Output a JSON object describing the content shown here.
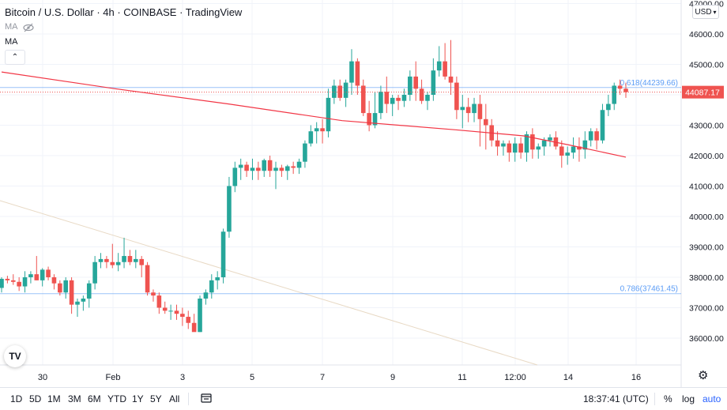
{
  "header": {
    "title": "Bitcoin / U.S. Dollar · 4h · COINBASE · TradingView",
    "ma1_label": "MA",
    "ma2_label": "MA",
    "currency": "USD"
  },
  "price_axis": {
    "labels": [
      "47000.00",
      "46000.00",
      "45000.00",
      "44000.00",
      "43000.00",
      "42000.00",
      "41000.00",
      "40000.00",
      "39000.00",
      "38000.00",
      "37000.00",
      "36000.00"
    ],
    "current_price": "44087.17",
    "current_color": "#ef5350"
  },
  "time_axis": {
    "labels": [
      "30",
      "Feb",
      "3",
      "5",
      "7",
      "9",
      "11",
      "12:00",
      "14",
      "16"
    ]
  },
  "fib": {
    "upper_label": "0.618(44239.66)",
    "lower_label": "0.786(37461.45)",
    "color": "#5b9cf6"
  },
  "colors": {
    "up": "#26a69a",
    "down": "#ef5350",
    "ma": "#f23645"
  },
  "bottom_bar": {
    "ranges": [
      "1D",
      "5D",
      "1M",
      "3M",
      "6M",
      "YTD",
      "1Y",
      "5Y",
      "All"
    ],
    "clock": "18:37:41 (UTC)",
    "percent": "%",
    "log": "log",
    "auto": "auto"
  },
  "chart_data": {
    "type": "candlestick",
    "symbol": "BTCUSD",
    "interval": "4h",
    "ylim": [
      35300,
      47000
    ],
    "x_tick_labels": [
      "30",
      "Feb",
      "3",
      "5",
      "7",
      "9",
      "11",
      "12:00",
      "14",
      "16"
    ],
    "candles": [
      [
        37650,
        38000,
        37500,
        37950
      ],
      [
        37950,
        38050,
        37800,
        37900
      ],
      [
        37900,
        38100,
        37750,
        37850
      ],
      [
        37850,
        38000,
        37550,
        37700
      ],
      [
        37700,
        38200,
        37500,
        38000
      ],
      [
        38000,
        38200,
        37800,
        38100
      ],
      [
        38100,
        38700,
        37900,
        37900
      ],
      [
        37900,
        38300,
        37700,
        38250
      ],
      [
        38250,
        38350,
        37900,
        38000
      ],
      [
        38000,
        38100,
        37600,
        37800
      ],
      [
        37800,
        37900,
        37400,
        37500
      ],
      [
        37500,
        38000,
        37300,
        37900
      ],
      [
        37900,
        38000,
        36800,
        37100
      ],
      [
        37100,
        37300,
        36700,
        37200
      ],
      [
        37200,
        37400,
        36900,
        37300
      ],
      [
        37300,
        37900,
        37000,
        37800
      ],
      [
        37800,
        38700,
        37600,
        38500
      ],
      [
        38500,
        38800,
        38300,
        38600
      ],
      [
        38600,
        38700,
        38300,
        38500
      ],
      [
        38500,
        39100,
        38300,
        38400
      ],
      [
        38400,
        38800,
        38200,
        38500
      ],
      [
        38500,
        39300,
        38300,
        38700
      ],
      [
        38700,
        38900,
        38400,
        38500
      ],
      [
        38500,
        38900,
        38300,
        38600
      ],
      [
        38600,
        38700,
        38000,
        38400
      ],
      [
        38400,
        38500,
        37400,
        37500
      ],
      [
        37500,
        37600,
        37200,
        37400
      ],
      [
        37400,
        37500,
        36800,
        37000
      ],
      [
        37000,
        37200,
        36800,
        36900
      ],
      [
        36900,
        37100,
        36600,
        36900
      ],
      [
        36900,
        37100,
        36600,
        36800
      ],
      [
        36800,
        37000,
        36400,
        36700
      ],
      [
        36700,
        36900,
        36300,
        36500
      ],
      [
        36500,
        36800,
        36300,
        36200
      ],
      [
        36200,
        37400,
        36200,
        37300
      ],
      [
        37300,
        37600,
        37100,
        37500
      ],
      [
        37500,
        38100,
        37300,
        37900
      ],
      [
        37900,
        38200,
        37600,
        38000
      ],
      [
        38000,
        39600,
        37800,
        39500
      ],
      [
        39500,
        41300,
        39300,
        41000
      ],
      [
        41000,
        41800,
        40800,
        41600
      ],
      [
        41600,
        41900,
        41200,
        41700
      ],
      [
        41700,
        41800,
        41300,
        41500
      ],
      [
        41500,
        41900,
        41200,
        41600
      ],
      [
        41600,
        41800,
        41200,
        41500
      ],
      [
        41500,
        41900,
        41300,
        41850
      ],
      [
        41850,
        42000,
        41300,
        41500
      ],
      [
        41500,
        41800,
        40900,
        41600
      ],
      [
        41600,
        41700,
        41300,
        41500
      ],
      [
        41500,
        41700,
        41200,
        41650
      ],
      [
        41650,
        41800,
        41400,
        41600
      ],
      [
        41600,
        41900,
        41400,
        41800
      ],
      [
        41800,
        42500,
        41600,
        42400
      ],
      [
        42400,
        43000,
        42300,
        42800
      ],
      [
        42800,
        43100,
        42400,
        42900
      ],
      [
        42900,
        43200,
        42400,
        42800
      ],
      [
        42800,
        44200,
        42600,
        43900
      ],
      [
        43900,
        44500,
        43700,
        44300
      ],
      [
        44300,
        44500,
        43800,
        43900
      ],
      [
        43900,
        44500,
        43600,
        44400
      ],
      [
        44400,
        45500,
        44000,
        45100
      ],
      [
        45100,
        45200,
        44000,
        44300
      ],
      [
        44300,
        44500,
        43300,
        43400
      ],
      [
        43400,
        43800,
        42800,
        43000
      ],
      [
        43000,
        44100,
        42900,
        43400
      ],
      [
        43400,
        44300,
        43200,
        44100
      ],
      [
        44100,
        44600,
        43400,
        43700
      ],
      [
        43700,
        44000,
        43300,
        43900
      ],
      [
        43900,
        44000,
        43500,
        43800
      ],
      [
        43800,
        44200,
        43600,
        44000
      ],
      [
        44000,
        44800,
        43800,
        44600
      ],
      [
        44600,
        45100,
        43800,
        44200
      ],
      [
        44200,
        44500,
        43700,
        43800
      ],
      [
        43800,
        44100,
        43500,
        44000
      ],
      [
        44000,
        45200,
        43800,
        44800
      ],
      [
        44800,
        45600,
        44600,
        45100
      ],
      [
        45100,
        45700,
        44500,
        44600
      ],
      [
        44600,
        45800,
        44000,
        44400
      ],
      [
        44400,
        44600,
        43200,
        43500
      ],
      [
        43500,
        44000,
        42900,
        43600
      ],
      [
        43600,
        43900,
        43100,
        43400
      ],
      [
        43400,
        43900,
        43100,
        43700
      ],
      [
        43700,
        44000,
        42300,
        43200
      ],
      [
        43200,
        43700,
        42200,
        43000
      ],
      [
        43000,
        43200,
        42300,
        42500
      ],
      [
        42500,
        42800,
        42000,
        42300
      ],
      [
        42300,
        42500,
        42000,
        42400
      ],
      [
        42400,
        42500,
        41800,
        42100
      ],
      [
        42100,
        42600,
        41800,
        42400
      ],
      [
        42400,
        42600,
        41900,
        42100
      ],
      [
        42100,
        42800,
        41800,
        42700
      ],
      [
        42700,
        42900,
        41900,
        42200
      ],
      [
        42200,
        42400,
        41900,
        42300
      ],
      [
        42300,
        42600,
        42000,
        42500
      ],
      [
        42500,
        42700,
        42300,
        42600
      ],
      [
        42600,
        42800,
        42200,
        42300
      ],
      [
        42300,
        42500,
        41600,
        42000
      ],
      [
        42000,
        42300,
        41700,
        42100
      ],
      [
        42100,
        42600,
        41900,
        42300
      ],
      [
        42300,
        42600,
        41800,
        42200
      ],
      [
        42200,
        42800,
        41900,
        42500
      ],
      [
        42500,
        42900,
        42300,
        42800
      ],
      [
        42800,
        42900,
        42200,
        42500
      ],
      [
        42500,
        43700,
        42400,
        43500
      ],
      [
        43500,
        44000,
        43300,
        43700
      ],
      [
        43700,
        44400,
        43500,
        44300
      ],
      [
        44300,
        44500,
        44000,
        44200
      ],
      [
        44200,
        44400,
        43900,
        44087
      ]
    ],
    "ma": {
      "type": "line",
      "points": [
        [
          0,
          44750
        ],
        [
          20,
          44200
        ],
        [
          40,
          43700
        ],
        [
          60,
          43150
        ],
        [
          80,
          42850
        ],
        [
          92,
          42650
        ],
        [
          100,
          42350
        ],
        [
          110,
          41950
        ]
      ]
    },
    "fib_levels": [
      {
        "ratio": "0.618",
        "price": 44239.66
      },
      {
        "ratio": "0.786",
        "price": 37461.45
      }
    ],
    "grid": true
  }
}
